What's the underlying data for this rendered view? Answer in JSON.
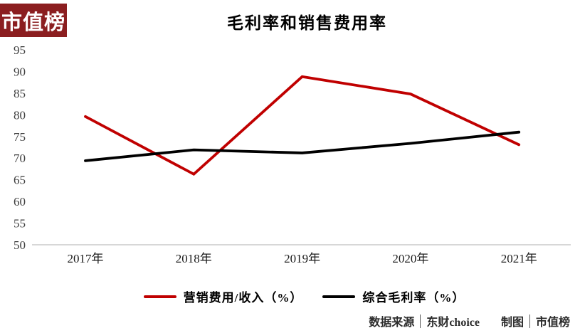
{
  "brand": {
    "logo_text": "市值榜"
  },
  "chart_data": {
    "type": "line",
    "title": "毛利率和销售费用率",
    "categories": [
      "2017年",
      "2018年",
      "2019年",
      "2020年",
      "2021年"
    ],
    "series": [
      {
        "name": "营销费用/收入（%）",
        "color": "#c00000",
        "values": [
          79.6,
          66.3,
          88.8,
          84.8,
          73.1
        ]
      },
      {
        "name": "综合毛利率（%）",
        "color": "#000000",
        "values": [
          69.4,
          71.9,
          71.2,
          73.4,
          76.0
        ]
      }
    ],
    "ylim": [
      50,
      95
    ],
    "ytick_step": 5,
    "yticks": [
      50,
      55,
      60,
      65,
      70,
      75,
      80,
      85,
      90,
      95
    ],
    "grid": false,
    "legend_position": "bottom",
    "xlabel": "",
    "ylabel": ""
  },
  "footer": {
    "source_label": "数据来源",
    "source_value": "东财choice",
    "credit_label": "制图",
    "credit_value": "市值榜"
  },
  "colors": {
    "accent_red": "#c00000",
    "logo_bg": "#8b1e20",
    "axis_line": "#bfbfbf"
  }
}
